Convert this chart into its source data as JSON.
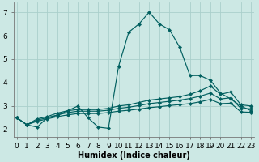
{
  "xlabel": "Humidex (Indice chaleur)",
  "bg_color": "#cce8e4",
  "grid_color": "#aacfcb",
  "line_color": "#005f5f",
  "x_values": [
    0,
    1,
    2,
    3,
    4,
    5,
    6,
    7,
    8,
    9,
    10,
    11,
    12,
    13,
    14,
    15,
    16,
    17,
    18,
    19,
    20,
    21,
    22,
    23
  ],
  "y_main": [
    2.5,
    2.2,
    2.1,
    2.5,
    2.6,
    2.8,
    3.0,
    2.5,
    2.1,
    2.05,
    4.7,
    6.15,
    6.5,
    7.0,
    6.5,
    6.25,
    5.5,
    4.3,
    4.3,
    4.1,
    3.55,
    3.3,
    3.0,
    2.8
  ],
  "y_upper": [
    2.5,
    2.2,
    2.45,
    2.55,
    2.7,
    2.8,
    2.85,
    2.85,
    2.85,
    2.9,
    3.0,
    3.05,
    3.15,
    3.25,
    3.3,
    3.35,
    3.4,
    3.5,
    3.65,
    3.85,
    3.5,
    3.6,
    3.05,
    3.0
  ],
  "y_mid": [
    2.5,
    2.2,
    2.4,
    2.5,
    2.62,
    2.72,
    2.78,
    2.78,
    2.78,
    2.82,
    2.9,
    2.95,
    3.02,
    3.1,
    3.15,
    3.2,
    3.25,
    3.32,
    3.42,
    3.55,
    3.3,
    3.35,
    2.9,
    2.88
  ],
  "y_lower": [
    2.5,
    2.2,
    2.35,
    2.45,
    2.55,
    2.62,
    2.68,
    2.68,
    2.68,
    2.72,
    2.78,
    2.82,
    2.87,
    2.93,
    2.97,
    3.02,
    3.06,
    3.1,
    3.18,
    3.28,
    3.1,
    3.12,
    2.75,
    2.73
  ],
  "xlim": [
    -0.3,
    23.3
  ],
  "ylim": [
    1.7,
    7.4
  ],
  "yticks": [
    2,
    3,
    4,
    5,
    6,
    7
  ],
  "xticks": [
    0,
    1,
    2,
    3,
    4,
    5,
    6,
    7,
    8,
    9,
    10,
    11,
    12,
    13,
    14,
    15,
    16,
    17,
    18,
    19,
    20,
    21,
    22,
    23
  ],
  "marker": "D",
  "markersize": 2.2,
  "linewidth": 0.85,
  "fontsize_label": 7,
  "fontsize_tick": 6.5
}
